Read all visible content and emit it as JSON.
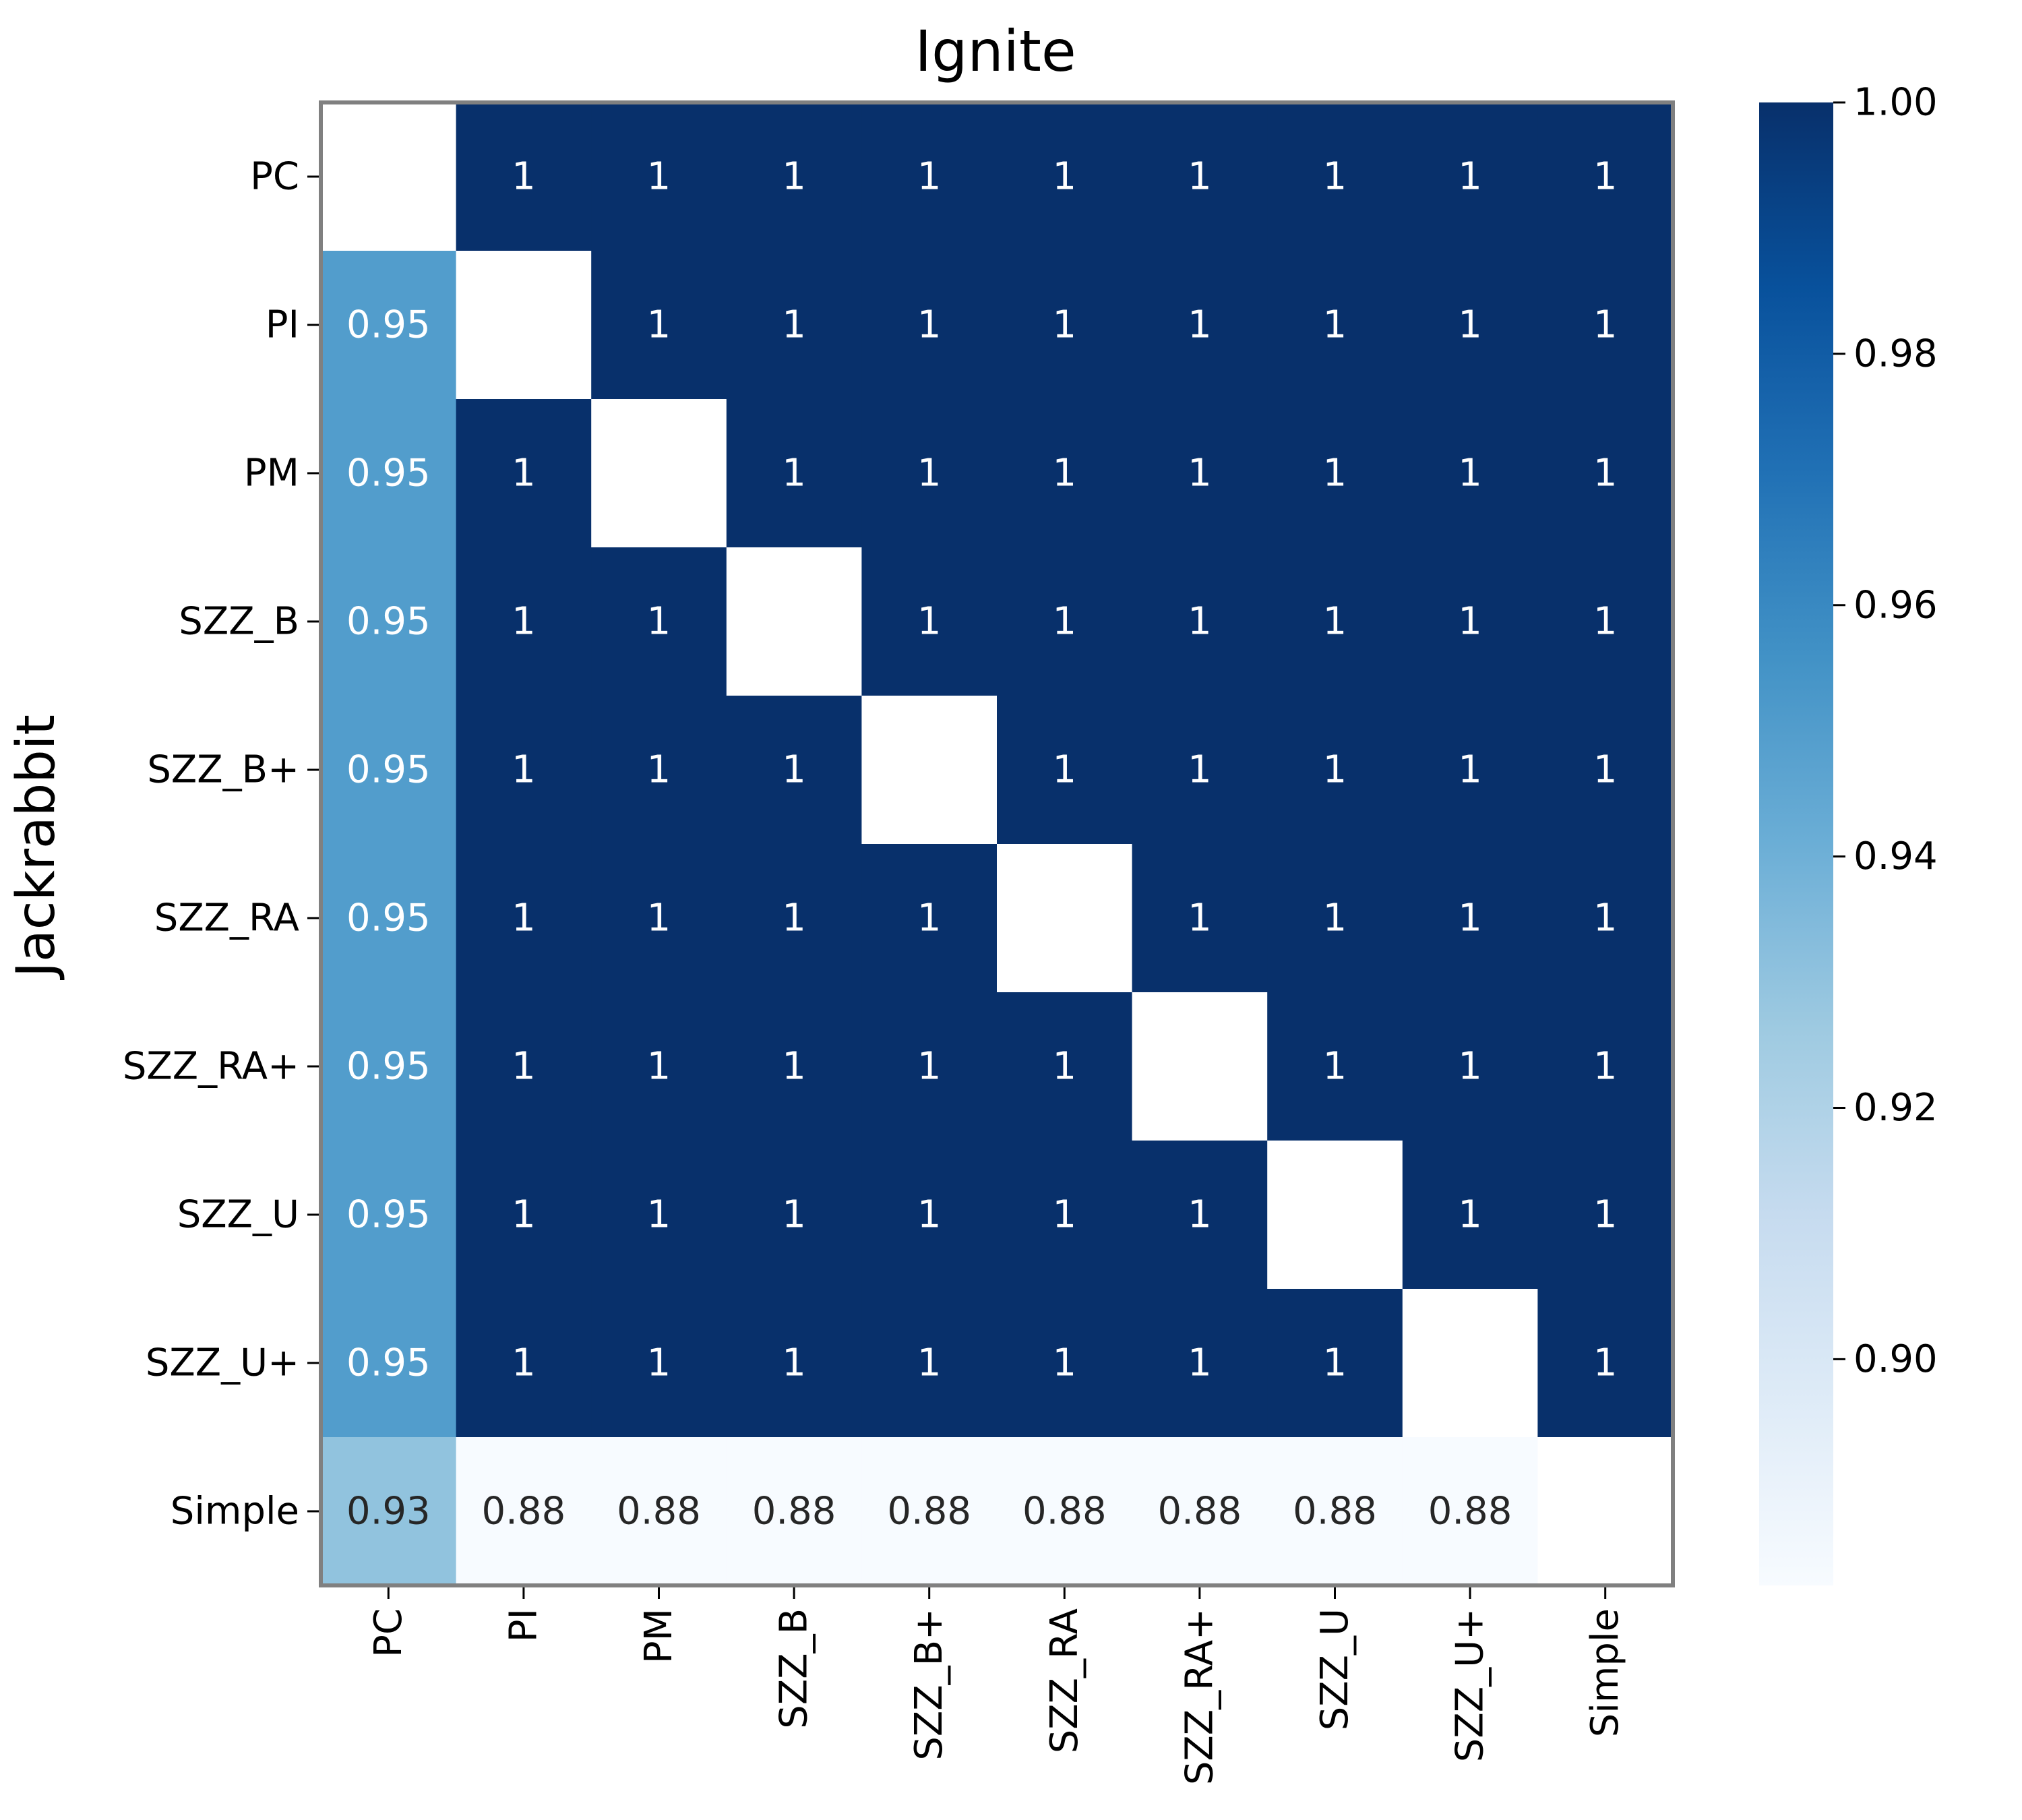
{
  "chart_data": {
    "type": "heatmap",
    "title": "Ignite",
    "xlabel": "",
    "ylabel": "Jackrabbit",
    "x_categories": [
      "PC",
      "PI",
      "PM",
      "SZZ_B",
      "SZZ_B+",
      "SZZ_RA",
      "SZZ_RA+",
      "SZZ_U",
      "SZZ_U+",
      "Simple"
    ],
    "y_categories": [
      "PC",
      "PI",
      "PM",
      "SZZ_B",
      "SZZ_B+",
      "SZZ_RA",
      "SZZ_RA+",
      "SZZ_U",
      "SZZ_U+",
      "Simple"
    ],
    "values": [
      [
        null,
        1,
        1,
        1,
        1,
        1,
        1,
        1,
        1,
        1
      ],
      [
        0.95,
        null,
        1,
        1,
        1,
        1,
        1,
        1,
        1,
        1
      ],
      [
        0.95,
        1,
        null,
        1,
        1,
        1,
        1,
        1,
        1,
        1
      ],
      [
        0.95,
        1,
        1,
        null,
        1,
        1,
        1,
        1,
        1,
        1
      ],
      [
        0.95,
        1,
        1,
        1,
        null,
        1,
        1,
        1,
        1,
        1
      ],
      [
        0.95,
        1,
        1,
        1,
        1,
        null,
        1,
        1,
        1,
        1
      ],
      [
        0.95,
        1,
        1,
        1,
        1,
        1,
        null,
        1,
        1,
        1
      ],
      [
        0.95,
        1,
        1,
        1,
        1,
        1,
        1,
        null,
        1,
        1
      ],
      [
        0.95,
        1,
        1,
        1,
        1,
        1,
        1,
        1,
        null,
        1
      ],
      [
        0.93,
        0.88,
        0.88,
        0.88,
        0.88,
        0.88,
        0.88,
        0.88,
        0.88,
        null
      ]
    ],
    "cell_labels": [
      [
        "",
        "1",
        "1",
        "1",
        "1",
        "1",
        "1",
        "1",
        "1",
        "1"
      ],
      [
        "0.95",
        "",
        "1",
        "1",
        "1",
        "1",
        "1",
        "1",
        "1",
        "1"
      ],
      [
        "0.95",
        "1",
        "",
        "1",
        "1",
        "1",
        "1",
        "1",
        "1",
        "1"
      ],
      [
        "0.95",
        "1",
        "1",
        "",
        "1",
        "1",
        "1",
        "1",
        "1",
        "1"
      ],
      [
        "0.95",
        "1",
        "1",
        "1",
        "",
        "1",
        "1",
        "1",
        "1",
        "1"
      ],
      [
        "0.95",
        "1",
        "1",
        "1",
        "1",
        "",
        "1",
        "1",
        "1",
        "1"
      ],
      [
        "0.95",
        "1",
        "1",
        "1",
        "1",
        "1",
        "",
        "1",
        "1",
        "1"
      ],
      [
        "0.95",
        "1",
        "1",
        "1",
        "1",
        "1",
        "1",
        "",
        "1",
        "1"
      ],
      [
        "0.95",
        "1",
        "1",
        "1",
        "1",
        "1",
        "1",
        "1",
        "",
        "1"
      ],
      [
        "0.93",
        "0.88",
        "0.88",
        "0.88",
        "0.88",
        "0.88",
        "0.88",
        "0.88",
        "0.88",
        ""
      ]
    ],
    "colormap": "Blues",
    "color_range": [
      0.882,
      1.0
    ],
    "colorbar": {
      "ticks": [
        0.9,
        0.92,
        0.94,
        0.96,
        0.98,
        1.0
      ],
      "tick_labels": [
        "0.90",
        "0.92",
        "0.94",
        "0.96",
        "0.98",
        "1.00"
      ]
    },
    "colors": {
      "frame": "#808080",
      "missing": "#ffffff",
      "text_light": "#ffffff",
      "text_dark": "#262626"
    }
  }
}
